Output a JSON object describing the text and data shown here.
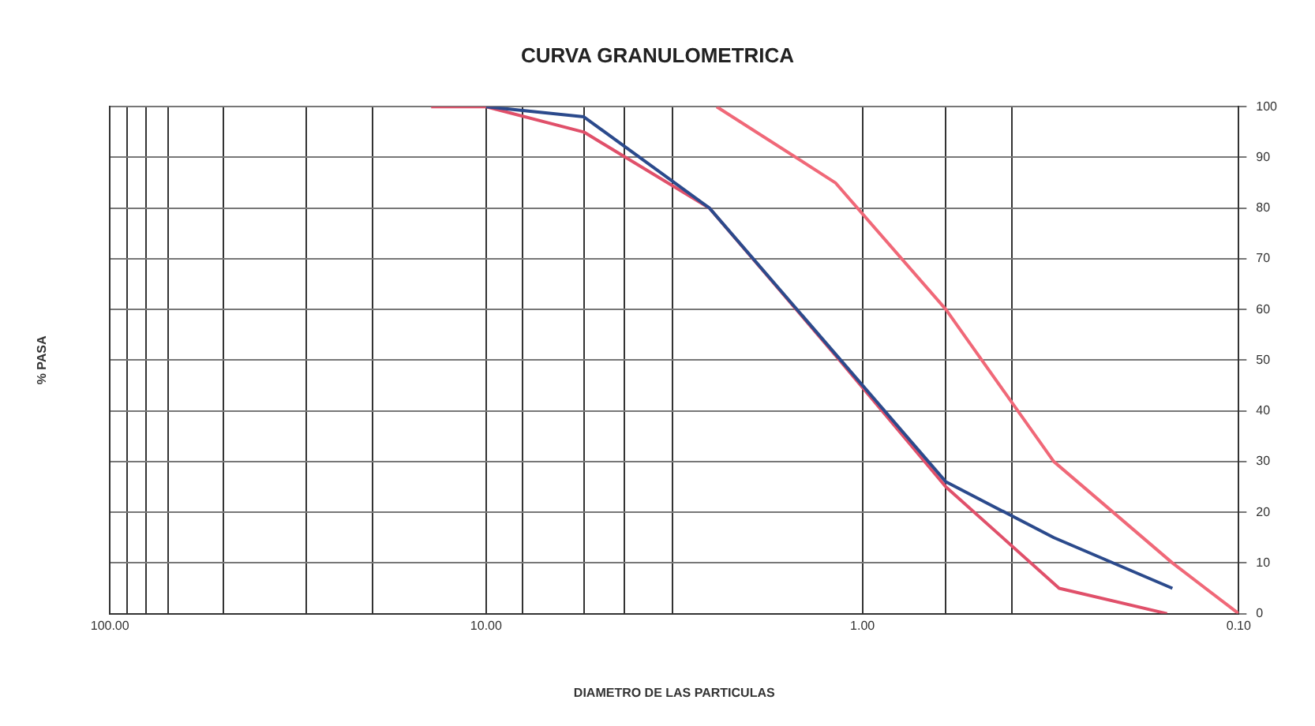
{
  "chart_data": {
    "type": "line",
    "title": "CURVA GRANULOMETRICA",
    "xlabel": "DIAMETRO DE LAS PARTICULAS",
    "ylabel": "% PASA",
    "log": "x",
    "xlim": [
      100,
      0.1
    ],
    "ylim": [
      0,
      100
    ],
    "xticks": [
      {
        "value": 100,
        "label": "100.00"
      },
      {
        "value": 90,
        "label": null
      },
      {
        "value": 80,
        "label": null
      },
      {
        "value": 70,
        "label": null
      },
      {
        "value": 50,
        "label": null
      },
      {
        "value": 30,
        "label": null
      },
      {
        "value": 20,
        "label": null
      },
      {
        "value": 10,
        "label": "10.00"
      },
      {
        "value": 8,
        "label": null
      },
      {
        "value": 5.5,
        "label": null
      },
      {
        "value": 4.3,
        "label": null
      },
      {
        "value": 3.2,
        "label": null
      },
      {
        "value": 1,
        "label": "1.00"
      },
      {
        "value": 0.6,
        "label": null
      },
      {
        "value": 0.4,
        "label": null
      },
      {
        "value": 0.1,
        "label": "0.10"
      }
    ],
    "yticks": [
      0,
      10,
      20,
      30,
      40,
      50,
      60,
      70,
      80,
      90,
      100
    ],
    "grid": true,
    "legend": false,
    "marker": "none",
    "line_style": "solid",
    "series": [
      {
        "color": "#2b4a8c",
        "x": [
          10,
          5.5,
          2.55,
          0.6,
          0.31,
          0.15
        ],
        "values": [
          100,
          98,
          80,
          26,
          15,
          5
        ]
      },
      {
        "color": "#e0506a",
        "x": [
          14,
          10,
          5.5,
          2.55,
          1.15,
          0.6,
          0.3,
          0.155
        ],
        "values": [
          100,
          100,
          95,
          80,
          50,
          25,
          5,
          0
        ]
      },
      {
        "color": "#f06878",
        "x": [
          2.44,
          1.18,
          0.6,
          0.31,
          0.15,
          0.1
        ],
        "values": [
          100,
          85,
          60,
          30,
          10,
          0
        ]
      }
    ]
  }
}
